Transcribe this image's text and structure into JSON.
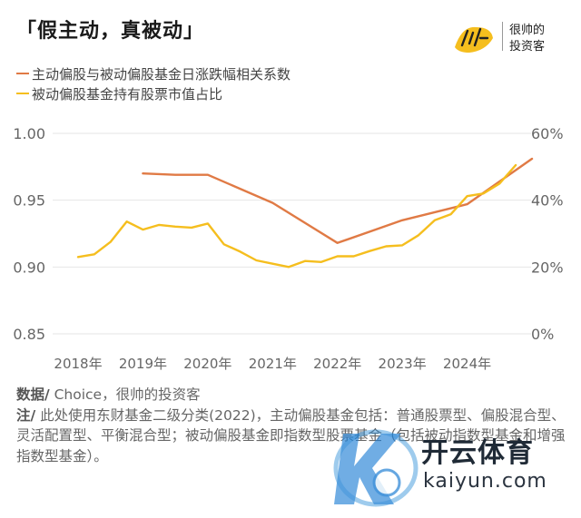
{
  "title": "「假主动，真被动」",
  "logo": {
    "line1": "很帅的",
    "line2": "投资客"
  },
  "colors": {
    "series1": "#E07A45",
    "series2": "#F5BE1E",
    "axis_text": "#666666",
    "grid": "#E6E6E6"
  },
  "chart_data": {
    "type": "line",
    "x_tick_labels": [
      "2018年",
      "2019年",
      "2020年",
      "2021年",
      "2022年",
      "2023年",
      "2024年"
    ],
    "y_left": {
      "ticks": [
        "0.85",
        "0.90",
        "0.95",
        "1.00"
      ],
      "min": 0.85,
      "max": 1.0
    },
    "y_right": {
      "ticks": [
        "0%",
        "20%",
        "40%",
        "60%"
      ],
      "min": 0,
      "max": 60
    },
    "series": [
      {
        "name": "主动偏股与被动偏股基金日涨跌幅相关系数",
        "axis": "left",
        "x": [
          2019.0,
          2019.5,
          2020.0,
          2021.0,
          2022.0,
          2023.0,
          2024.0,
          2025.0
        ],
        "values": [
          0.97,
          0.969,
          0.969,
          0.948,
          0.918,
          0.935,
          0.947,
          0.981
        ]
      },
      {
        "name": "被动偏股基金持有股票市值占比",
        "axis": "right",
        "x": [
          2018.0,
          2018.25,
          2018.5,
          2018.75,
          2019.0,
          2019.25,
          2019.5,
          2019.75,
          2020.0,
          2020.25,
          2020.5,
          2020.75,
          2021.0,
          2021.25,
          2021.5,
          2021.75,
          2022.0,
          2022.25,
          2022.5,
          2022.75,
          2023.0,
          2023.25,
          2023.5,
          2023.75,
          2024.0,
          2024.25,
          2024.5,
          2024.75
        ],
        "values": [
          23.0,
          23.8,
          27.5,
          33.6,
          31.2,
          32.6,
          32.1,
          31.8,
          33.0,
          26.8,
          24.6,
          22.0,
          21.0,
          20.0,
          21.8,
          21.5,
          23.2,
          23.2,
          24.8,
          26.2,
          26.5,
          29.5,
          34.0,
          35.8,
          41.2,
          42.0,
          45.0,
          50.5
        ]
      }
    ]
  },
  "footer": {
    "source_label": "数据/",
    "source_text": " Choice，很帅的投资客",
    "note_label": "注/",
    "note_text": " 此处使用东财基金二级分类(2022)，主动偏股基金包括：普通股票型、偏股混合型、灵活配置型、平衡混合型；被动偏股基金即指数型股票基金（包括被动指数型基金和增强指数型基金）。"
  },
  "watermark": {
    "brand": "开云体育",
    "url": "kaiyun.com"
  }
}
